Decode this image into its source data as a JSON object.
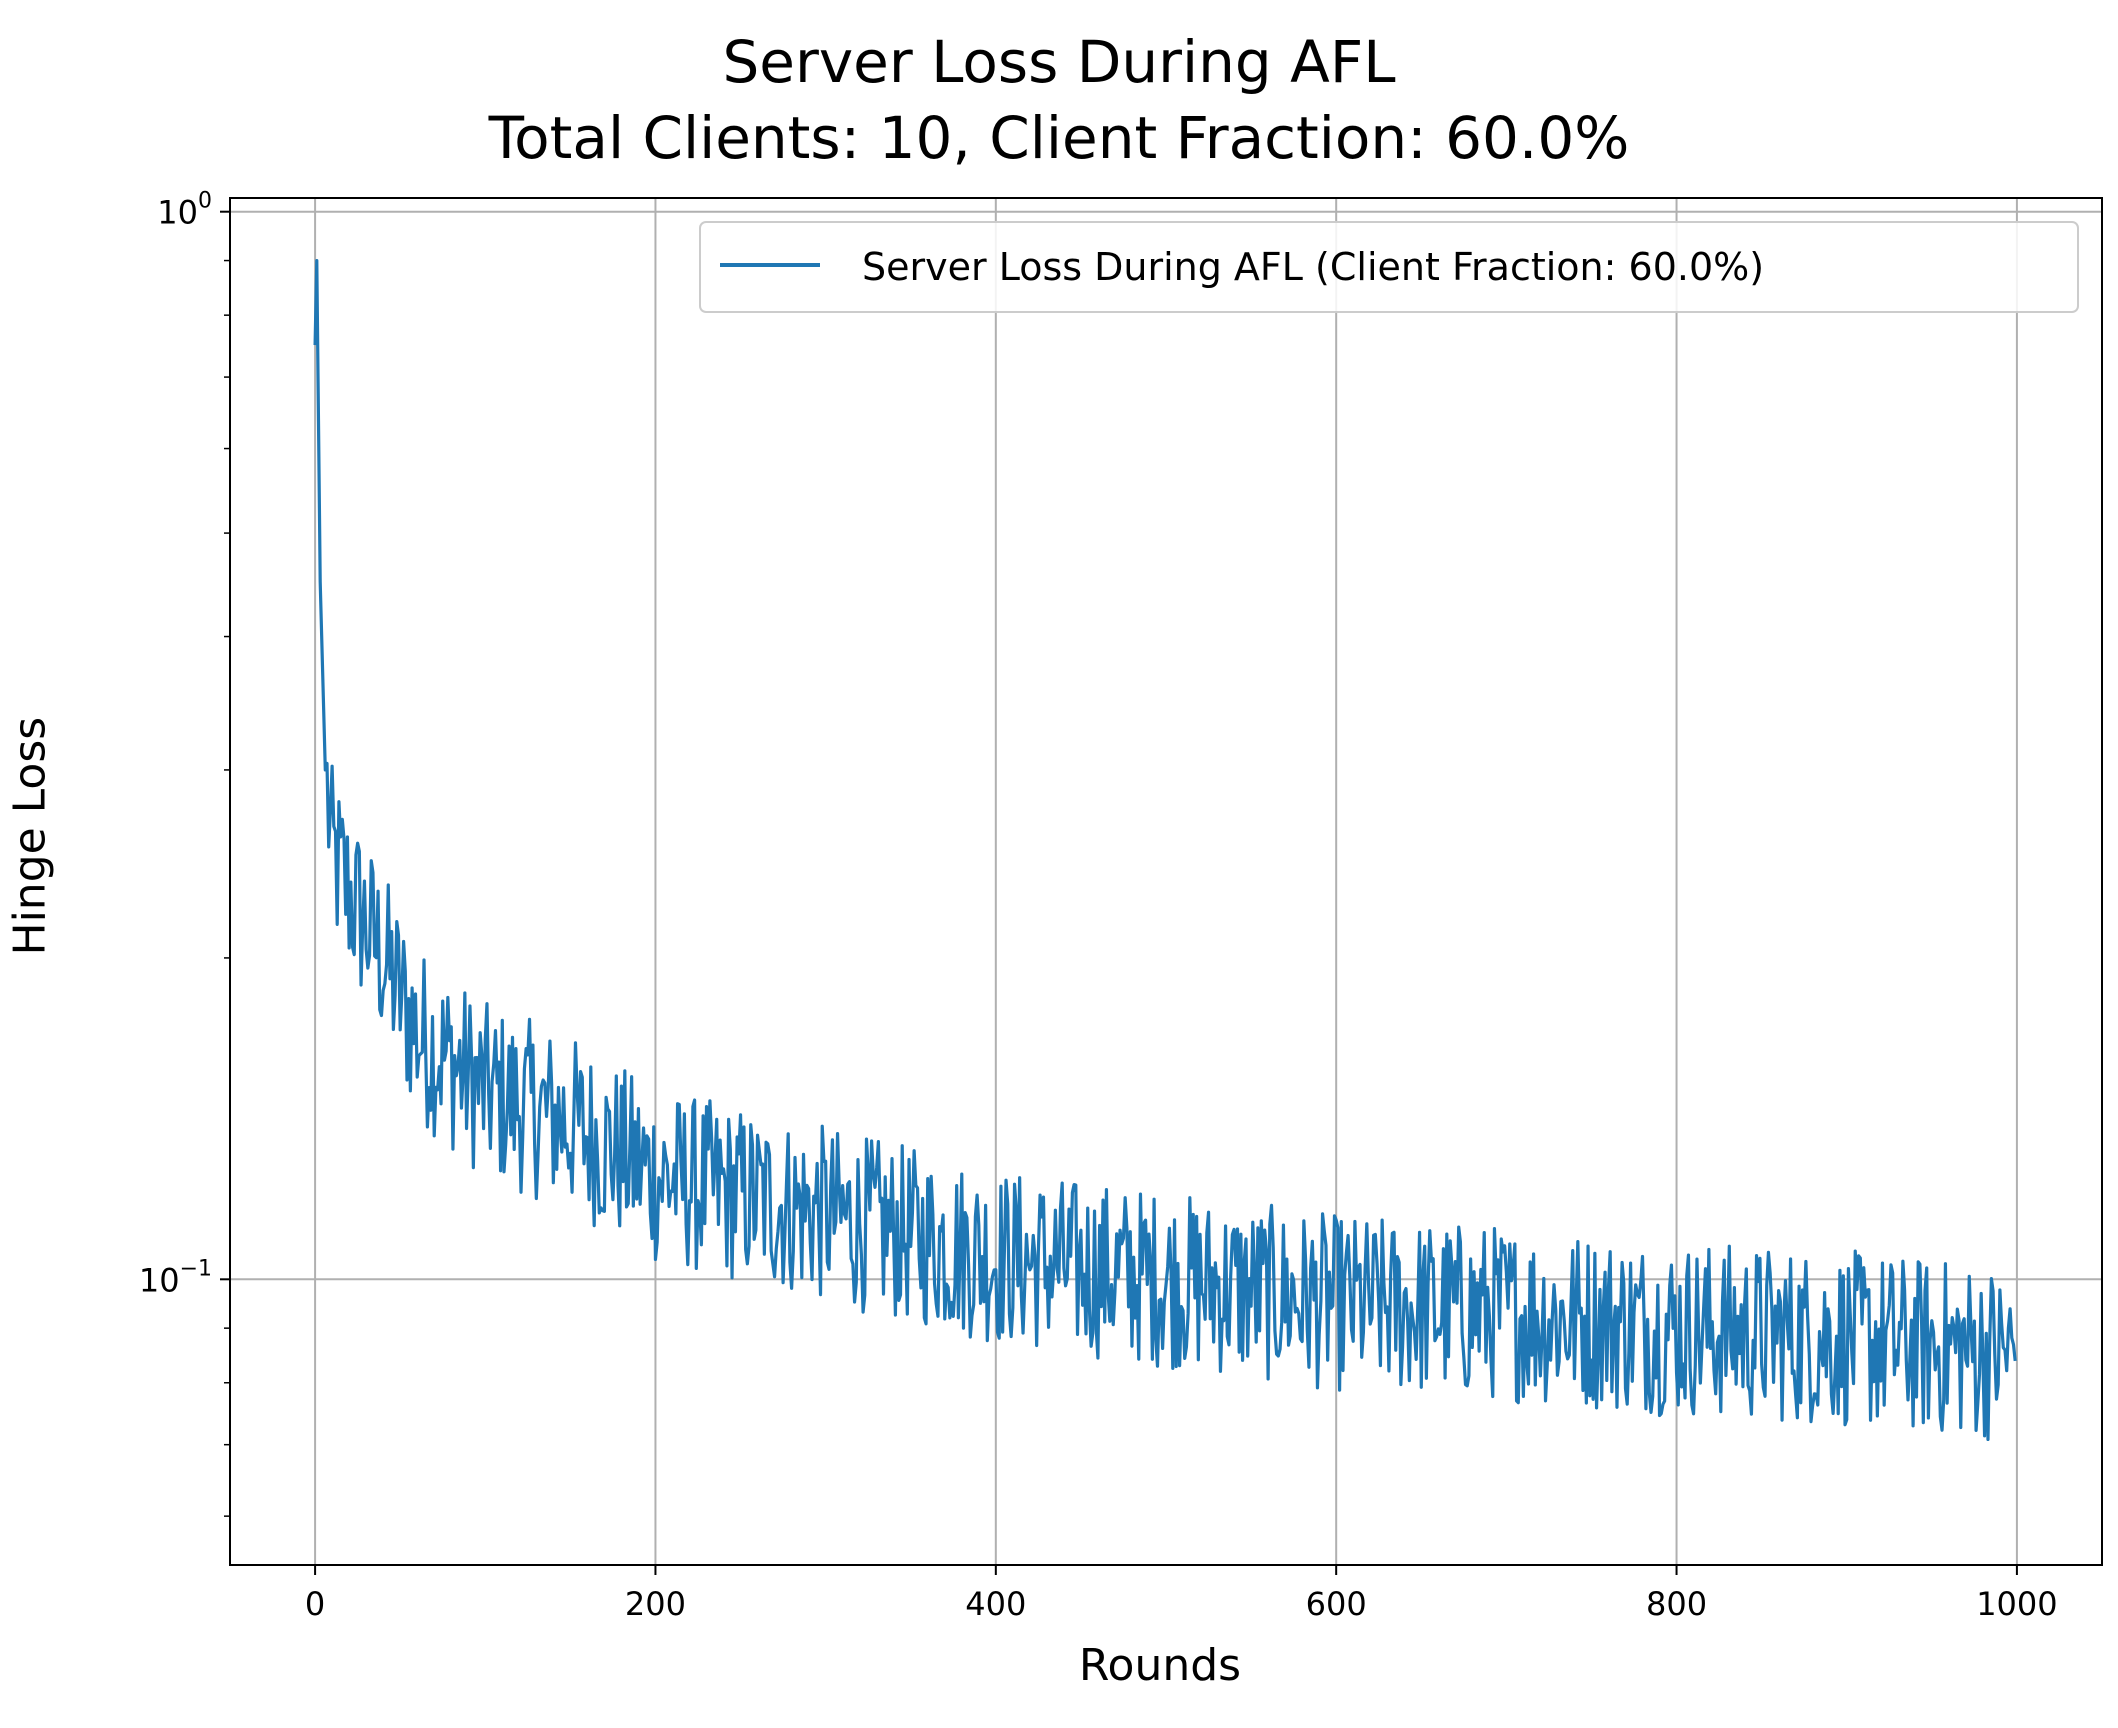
{
  "chart_data": {
    "type": "line",
    "title_lines": [
      "Server Loss During AFL",
      "Total Clients: 10, Client Fraction: 60.0%"
    ],
    "xlabel": "Rounds",
    "ylabel": "Hinge Loss",
    "xlim": [
      -50,
      1050
    ],
    "ylim": [
      0.054,
      1.03
    ],
    "yscale": "log",
    "grid": true,
    "legend_position": "upper-right",
    "x_ticks": [
      0,
      200,
      400,
      600,
      800,
      1000
    ],
    "y_ticks": [
      {
        "value": 1.0,
        "base": "10",
        "exp": "0"
      },
      {
        "value": 0.1,
        "base": "10",
        "exp": "−1"
      }
    ],
    "series": [
      {
        "name": "Server Loss During AFL (Client Fraction: 60.0%)",
        "color": "#1f77b4",
        "x_start": 0,
        "x_step": 1,
        "count": 1000,
        "keyframes": [
          [
            0,
            0.75
          ],
          [
            1,
            0.9
          ],
          [
            3,
            0.45
          ],
          [
            6,
            0.3
          ],
          [
            10,
            0.25
          ],
          [
            20,
            0.23
          ],
          [
            40,
            0.2
          ],
          [
            60,
            0.17
          ],
          [
            100,
            0.15
          ],
          [
            150,
            0.14
          ],
          [
            200,
            0.125
          ],
          [
            300,
            0.115
          ],
          [
            400,
            0.105
          ],
          [
            500,
            0.1
          ],
          [
            600,
            0.095
          ],
          [
            700,
            0.093
          ],
          [
            800,
            0.09
          ],
          [
            900,
            0.088
          ],
          [
            1000,
            0.085
          ]
        ],
        "noise_amplitude": 0.12,
        "min_value": 0.055,
        "max_value": 0.9
      }
    ]
  }
}
